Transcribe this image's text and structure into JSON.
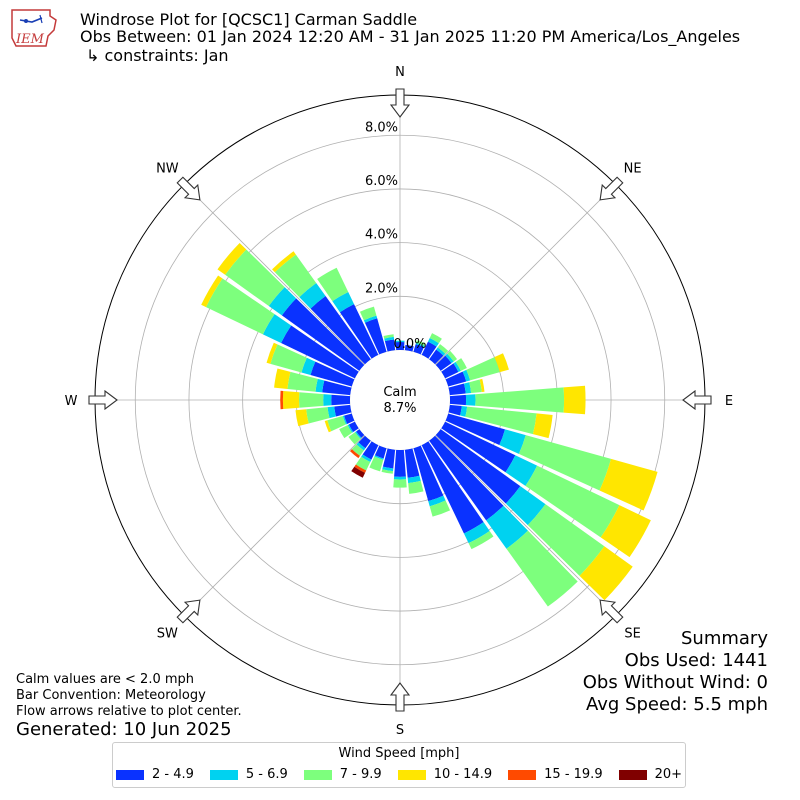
{
  "header": {
    "title": "Windrose Plot for [QCSC1] Carman Saddle",
    "subtitle": "Obs Between: 01 Jan 2024 12:20 AM - 31 Jan 2025 11:20 PM America/Los_Angeles",
    "constraints": "↳ constraints: Jan",
    "logo_text": "IEM"
  },
  "notes": {
    "calm_note": "Calm values are < 2.0 mph",
    "bar_convention": "Bar Convention: Meteorology",
    "flow_note": "Flow arrows relative to plot center.",
    "generated": "Generated: 10 Jun 2025"
  },
  "summary": {
    "title": "Summary",
    "obs_used": "Obs Used: 1441",
    "obs_without_wind": "Obs Without Wind: 0",
    "avg_speed": "Avg Speed: 5.5 mph"
  },
  "legend": {
    "title": "Wind Speed [mph]",
    "items": [
      {
        "label": "2 - 4.9",
        "color": "#0a32ff"
      },
      {
        "label": "5 - 6.9",
        "color": "#00d2f0"
      },
      {
        "label": "7 - 9.9",
        "color": "#7dff7d"
      },
      {
        "label": "10 - 14.9",
        "color": "#ffe600"
      },
      {
        "label": "15 - 19.9",
        "color": "#ff4a00"
      },
      {
        "label": "20+",
        "color": "#800000"
      }
    ]
  },
  "chart_data": {
    "type": "polar-bar",
    "calm": {
      "label": "Calm",
      "value_label": "8.7%",
      "percent": 8.7
    },
    "radial_ticks": [
      "0.0%",
      "2.0%",
      "4.0%",
      "6.0%",
      "8.0%"
    ],
    "radial_tick_values": [
      0,
      2,
      4,
      6,
      8
    ],
    "radial_max": 9.5,
    "directions": [
      "N",
      "NE",
      "E",
      "SE",
      "S",
      "SW",
      "W",
      "NW"
    ],
    "sector_width_deg": 10,
    "speed_bins": [
      "2 - 4.9",
      "5 - 6.9",
      "7 - 9.9",
      "10 - 14.9",
      "15 - 19.9",
      "20+"
    ],
    "bin_colors": [
      "#0a32ff",
      "#00d2f0",
      "#7dff7d",
      "#ffe600",
      "#ff4a00",
      "#800000"
    ],
    "sectors": [
      {
        "dir": 0,
        "values": [
          0.3,
          0.05,
          0,
          0,
          0,
          0
        ]
      },
      {
        "dir": 10,
        "values": [
          0.2,
          0,
          0,
          0,
          0,
          0
        ]
      },
      {
        "dir": 20,
        "values": [
          0.3,
          0.05,
          0.1,
          0,
          0,
          0
        ]
      },
      {
        "dir": 30,
        "values": [
          0.55,
          0.15,
          0.2,
          0,
          0,
          0
        ]
      },
      {
        "dir": 40,
        "values": [
          0.45,
          0.1,
          0.15,
          0,
          0,
          0
        ]
      },
      {
        "dir": 50,
        "values": [
          0.5,
          0.1,
          0.15,
          0,
          0,
          0
        ]
      },
      {
        "dir": 60,
        "values": [
          0.55,
          0.1,
          0.25,
          0,
          0,
          0
        ]
      },
      {
        "dir": 70,
        "values": [
          0.7,
          0.15,
          1.15,
          0.35,
          0,
          0
        ]
      },
      {
        "dir": 80,
        "values": [
          0.6,
          0.2,
          0.4,
          0.1,
          0,
          0
        ]
      },
      {
        "dir": 90,
        "values": [
          0.6,
          0.35,
          3.3,
          0.8,
          0,
          0
        ]
      },
      {
        "dir": 100,
        "values": [
          0.45,
          0.2,
          2.6,
          0.6,
          0,
          0
        ]
      },
      {
        "dir": 110,
        "values": [
          2.2,
          0.8,
          3.3,
          1.8,
          0,
          0
        ]
      },
      {
        "dir": 120,
        "values": [
          2.9,
          0.9,
          3.4,
          1.3,
          0,
          0
        ]
      },
      {
        "dir": 130,
        "values": [
          3.65,
          1.15,
          2.7,
          1.3,
          0,
          0
        ]
      },
      {
        "dir": 140,
        "values": [
          3.65,
          1.3,
          2.65,
          0,
          0,
          0
        ]
      },
      {
        "dir": 150,
        "values": [
          3.65,
          0.4,
          0.25,
          0,
          0,
          0
        ]
      },
      {
        "dir": 160,
        "values": [
          2.05,
          0.2,
          0.4,
          0,
          0,
          0
        ]
      },
      {
        "dir": 170,
        "values": [
          1.05,
          0.2,
          0.4,
          0,
          0,
          0
        ]
      },
      {
        "dir": 180,
        "values": [
          1.0,
          0.1,
          0.3,
          0,
          0,
          0
        ]
      },
      {
        "dir": 190,
        "values": [
          0.7,
          0.1,
          0.1,
          0,
          0,
          0
        ]
      },
      {
        "dir": 200,
        "values": [
          0.4,
          0.05,
          0.45,
          0,
          0,
          0
        ]
      },
      {
        "dir": 210,
        "values": [
          0.6,
          0.1,
          0.35,
          0,
          0.1,
          0.2
        ]
      },
      {
        "dir": 220,
        "values": [
          0.35,
          0.1,
          0.25,
          0,
          0.1,
          0
        ]
      },
      {
        "dir": 230,
        "values": [
          0.15,
          0.05,
          0.3,
          0,
          0,
          0
        ]
      },
      {
        "dir": 240,
        "values": [
          0.25,
          0.05,
          0.35,
          0,
          0,
          0
        ]
      },
      {
        "dir": 250,
        "values": [
          0.3,
          0.05,
          0.6,
          0.1,
          0,
          0
        ]
      },
      {
        "dir": 260,
        "values": [
          0.6,
          0.25,
          0.8,
          0.4,
          0,
          0
        ]
      },
      {
        "dir": 270,
        "values": [
          0.7,
          0.3,
          0.9,
          0.6,
          0.1,
          0
        ]
      },
      {
        "dir": 280,
        "values": [
          1.05,
          0.25,
          1.05,
          0.5,
          0,
          0
        ]
      },
      {
        "dir": 290,
        "values": [
          1.6,
          0.35,
          1.2,
          0.15,
          0,
          0
        ]
      },
      {
        "dir": 300,
        "values": [
          3.05,
          0.75,
          2.35,
          0.2,
          0,
          0
        ]
      },
      {
        "dir": 310,
        "values": [
          3.55,
          0.6,
          2.0,
          0.35,
          0,
          0
        ]
      },
      {
        "dir": 320,
        "values": [
          2.9,
          0.6,
          1.3,
          0.15,
          0,
          0
        ]
      },
      {
        "dir": 330,
        "values": [
          2.1,
          0.5,
          1.0,
          0,
          0,
          0
        ]
      },
      {
        "dir": 340,
        "values": [
          1.3,
          0.1,
          0.35,
          0,
          0,
          0
        ]
      },
      {
        "dir": 350,
        "values": [
          0.4,
          0.1,
          0.1,
          0,
          0,
          0
        ]
      }
    ]
  }
}
